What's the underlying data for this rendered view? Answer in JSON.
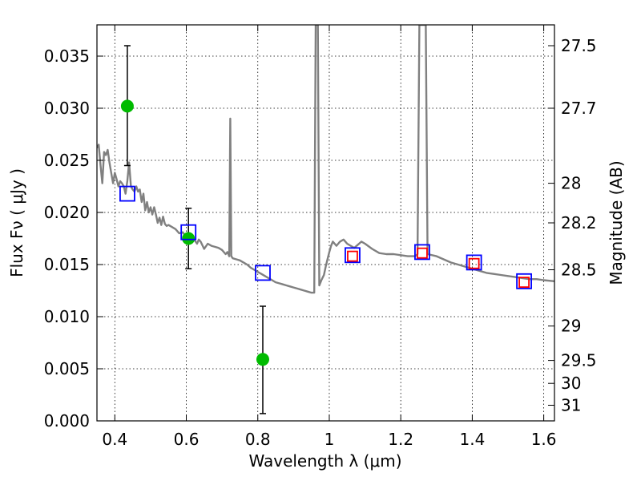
{
  "chart_data": {
    "type": "scatter",
    "title": "",
    "xlabel": "Wavelength  λ (μm)",
    "ylabel": "Flux  Fν  ( μJy )",
    "ylabel_right": "Magnitude (AB)",
    "xlim": [
      0.35,
      1.63
    ],
    "ylim": [
      0.0,
      0.038
    ],
    "grid": true,
    "x_ticks": [
      0.4,
      0.6,
      0.8,
      1.0,
      1.2,
      1.4,
      1.6
    ],
    "x_tick_labels": [
      "0.4",
      "0.6",
      "0.8",
      "1",
      "1.2",
      "1.4",
      "1.6"
    ],
    "y_ticks": [
      0.0,
      0.005,
      0.01,
      0.015,
      0.02,
      0.025,
      0.03,
      0.035
    ],
    "y_tick_labels": [
      "0.000",
      "0.005",
      "0.010",
      "0.015",
      "0.020",
      "0.025",
      "0.030",
      "0.035"
    ],
    "right_axis_ticks": [
      {
        "label": "27.5",
        "flux": 0.036
      },
      {
        "label": "27.7",
        "flux": 0.03
      },
      {
        "label": "28",
        "flux": 0.0228
      },
      {
        "label": "28.2",
        "flux": 0.019
      },
      {
        "label": "28.5",
        "flux": 0.0145
      },
      {
        "label": "29",
        "flux": 0.0091
      },
      {
        "label": "29.5",
        "flux": 0.0058
      },
      {
        "label": "30",
        "flux": 0.0036
      },
      {
        "label": "31",
        "flux": 0.0015
      }
    ],
    "series": [
      {
        "kind": "line",
        "color": "#808080",
        "points": [
          [
            0.35,
            0.0262
          ],
          [
            0.355,
            0.0265
          ],
          [
            0.36,
            0.0245
          ],
          [
            0.365,
            0.0228
          ],
          [
            0.37,
            0.0258
          ],
          [
            0.375,
            0.0255
          ],
          [
            0.38,
            0.026
          ],
          [
            0.385,
            0.0248
          ],
          [
            0.39,
            0.0238
          ],
          [
            0.395,
            0.0228
          ],
          [
            0.4,
            0.0238
          ],
          [
            0.405,
            0.0232
          ],
          [
            0.41,
            0.0225
          ],
          [
            0.415,
            0.023
          ],
          [
            0.42,
            0.0228
          ],
          [
            0.425,
            0.0225
          ],
          [
            0.43,
            0.0218
          ],
          [
            0.435,
            0.023
          ],
          [
            0.44,
            0.0248
          ],
          [
            0.445,
            0.0225
          ],
          [
            0.45,
            0.0222
          ],
          [
            0.455,
            0.022
          ],
          [
            0.46,
            0.0225
          ],
          [
            0.465,
            0.022
          ],
          [
            0.47,
            0.0222
          ],
          [
            0.475,
            0.021
          ],
          [
            0.48,
            0.0218
          ],
          [
            0.485,
            0.0202
          ],
          [
            0.49,
            0.021
          ],
          [
            0.495,
            0.02
          ],
          [
            0.5,
            0.0205
          ],
          [
            0.505,
            0.0198
          ],
          [
            0.51,
            0.0205
          ],
          [
            0.515,
            0.0198
          ],
          [
            0.52,
            0.019
          ],
          [
            0.525,
            0.0195
          ],
          [
            0.53,
            0.0188
          ],
          [
            0.535,
            0.0196
          ],
          [
            0.54,
            0.0189
          ],
          [
            0.545,
            0.0187
          ],
          [
            0.55,
            0.0188
          ],
          [
            0.56,
            0.0186
          ],
          [
            0.57,
            0.0184
          ],
          [
            0.58,
            0.018
          ],
          [
            0.59,
            0.0181
          ],
          [
            0.6,
            0.0176
          ],
          [
            0.61,
            0.0178
          ],
          [
            0.62,
            0.0175
          ],
          [
            0.63,
            0.017
          ],
          [
            0.635,
            0.0174
          ],
          [
            0.64,
            0.0172
          ],
          [
            0.65,
            0.0165
          ],
          [
            0.66,
            0.017
          ],
          [
            0.67,
            0.0168
          ],
          [
            0.68,
            0.0167
          ],
          [
            0.69,
            0.0166
          ],
          [
            0.7,
            0.0164
          ],
          [
            0.71,
            0.016
          ],
          [
            0.715,
            0.0162
          ],
          [
            0.72,
            0.0158
          ],
          [
            0.723,
            0.029
          ],
          [
            0.726,
            0.0158
          ],
          [
            0.73,
            0.0156
          ],
          [
            0.74,
            0.0155
          ],
          [
            0.75,
            0.0154
          ],
          [
            0.76,
            0.0152
          ],
          [
            0.77,
            0.015
          ],
          [
            0.78,
            0.0147
          ],
          [
            0.79,
            0.0145
          ],
          [
            0.8,
            0.0143
          ],
          [
            0.81,
            0.0141
          ],
          [
            0.82,
            0.0139
          ],
          [
            0.83,
            0.0137
          ],
          [
            0.84,
            0.0135
          ],
          [
            0.85,
            0.0133
          ],
          [
            0.86,
            0.0132
          ],
          [
            0.87,
            0.0131
          ],
          [
            0.88,
            0.013
          ],
          [
            0.89,
            0.0129
          ],
          [
            0.9,
            0.0128
          ],
          [
            0.91,
            0.0127
          ],
          [
            0.92,
            0.0126
          ],
          [
            0.93,
            0.0125
          ],
          [
            0.94,
            0.0124
          ],
          [
            0.95,
            0.0123
          ],
          [
            0.958,
            0.0123
          ],
          [
            0.962,
            0.038
          ],
          [
            0.968,
            0.038
          ],
          [
            0.972,
            0.013
          ],
          [
            0.978,
            0.0135
          ],
          [
            0.985,
            0.014
          ],
          [
            0.99,
            0.0148
          ],
          [
            0.995,
            0.0155
          ],
          [
            1.0,
            0.0162
          ],
          [
            1.005,
            0.0168
          ],
          [
            1.01,
            0.0172
          ],
          [
            1.02,
            0.0168
          ],
          [
            1.03,
            0.0172
          ],
          [
            1.04,
            0.0174
          ],
          [
            1.05,
            0.017
          ],
          [
            1.06,
            0.0168
          ],
          [
            1.07,
            0.0166
          ],
          [
            1.08,
            0.0169
          ],
          [
            1.09,
            0.0172
          ],
          [
            1.1,
            0.017
          ],
          [
            1.12,
            0.0165
          ],
          [
            1.14,
            0.0161
          ],
          [
            1.16,
            0.016
          ],
          [
            1.18,
            0.016
          ],
          [
            1.2,
            0.0159
          ],
          [
            1.22,
            0.0158
          ],
          [
            1.24,
            0.0158
          ],
          [
            1.247,
            0.016
          ],
          [
            1.252,
            0.038
          ],
          [
            1.27,
            0.038
          ],
          [
            1.275,
            0.016
          ],
          [
            1.3,
            0.0158
          ],
          [
            1.32,
            0.0155
          ],
          [
            1.34,
            0.0152
          ],
          [
            1.36,
            0.015
          ],
          [
            1.38,
            0.0148
          ],
          [
            1.4,
            0.0146
          ],
          [
            1.42,
            0.0144
          ],
          [
            1.44,
            0.0142
          ],
          [
            1.46,
            0.0141
          ],
          [
            1.48,
            0.014
          ],
          [
            1.5,
            0.0139
          ],
          [
            1.52,
            0.0138
          ],
          [
            1.54,
            0.0137
          ],
          [
            1.56,
            0.0136
          ],
          [
            1.58,
            0.0136
          ],
          [
            1.6,
            0.0135
          ],
          [
            1.63,
            0.0134
          ]
        ]
      },
      {
        "kind": "errorbar-points",
        "color": "#00bb00",
        "points": [
          {
            "x": 0.435,
            "y": 0.0302,
            "ylow": 0.0245,
            "yhigh": 0.036
          },
          {
            "x": 0.606,
            "y": 0.0175,
            "ylow": 0.0146,
            "yhigh": 0.0204
          },
          {
            "x": 0.814,
            "y": 0.0059,
            "ylow": 0.0007,
            "yhigh": 0.011
          }
        ]
      },
      {
        "kind": "open-squares",
        "color": "#0000ff",
        "points": [
          [
            0.435,
            0.0218
          ],
          [
            0.606,
            0.0181
          ],
          [
            0.814,
            0.0142
          ],
          [
            1.065,
            0.0159
          ],
          [
            1.26,
            0.0162
          ],
          [
            1.405,
            0.0152
          ],
          [
            1.545,
            0.0134
          ]
        ]
      },
      {
        "kind": "open-squares",
        "color": "#ff0000",
        "points": [
          [
            1.065,
            0.0158
          ],
          [
            1.26,
            0.0161
          ],
          [
            1.405,
            0.0151
          ],
          [
            1.545,
            0.0133
          ]
        ]
      }
    ]
  }
}
